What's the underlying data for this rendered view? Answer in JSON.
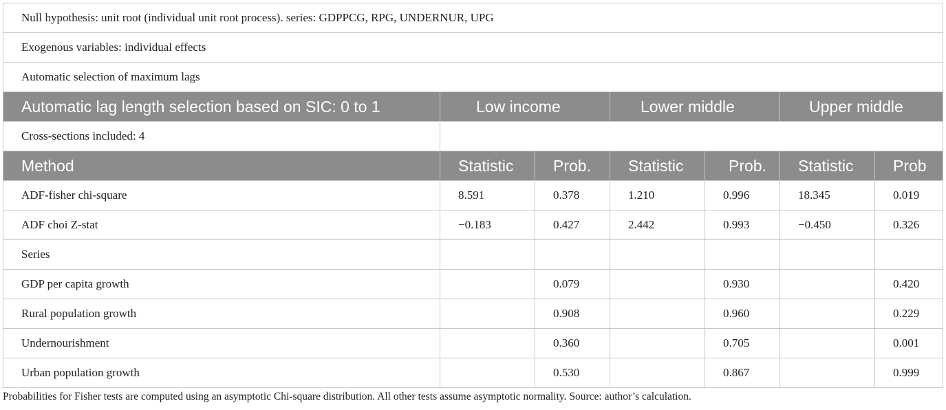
{
  "notes": [
    "Null hypothesis: unit root (individual unit root process). series: GDPPCG, RPG, UNDERNUR, UPG",
    "Exogenous variables: individual effects",
    "Automatic selection of maximum lags"
  ],
  "group_header": {
    "label": "Automatic lag length selection based on SIC: 0 to 1",
    "groups": [
      "Low income",
      "Lower middle",
      "Upper middle"
    ]
  },
  "cross_sections": "Cross-sections included: 4",
  "column_header": {
    "method": "Method",
    "cols": [
      "Statistic",
      "Prob.",
      "Statistic",
      "Prob.",
      "Statistic",
      "Prob"
    ]
  },
  "rows": [
    {
      "label": "ADF-fisher chi-square",
      "cells": [
        "8.591",
        "0.378",
        "1.210",
        "0.996",
        "18.345",
        "0.019"
      ]
    },
    {
      "label": "ADF choi Z-stat",
      "cells": [
        "−0.183",
        "0.427",
        "2.442",
        "0.993",
        "−0.450",
        "0.326"
      ]
    },
    {
      "label": "Series",
      "cells": [
        "",
        "",
        "",
        "",
        "",
        ""
      ]
    },
    {
      "label": "GDP per capita growth",
      "cells": [
        "",
        "0.079",
        "",
        "0.930",
        "",
        "0.420"
      ]
    },
    {
      "label": "Rural population growth",
      "cells": [
        "",
        "0.908",
        "",
        "0.960",
        "",
        "0.229"
      ]
    },
    {
      "label": "Undernourishment",
      "cells": [
        "",
        "0.360",
        "",
        "0.705",
        "",
        "0.001"
      ]
    },
    {
      "label": "Urban population growth",
      "cells": [
        "",
        "0.530",
        "",
        "0.867",
        "",
        "0.999"
      ]
    }
  ],
  "footnote": "Probabilities for Fisher tests are computed using an asymptotic Chi-square distribution. All other tests assume asymptotic normality. Source: author’s calculation."
}
